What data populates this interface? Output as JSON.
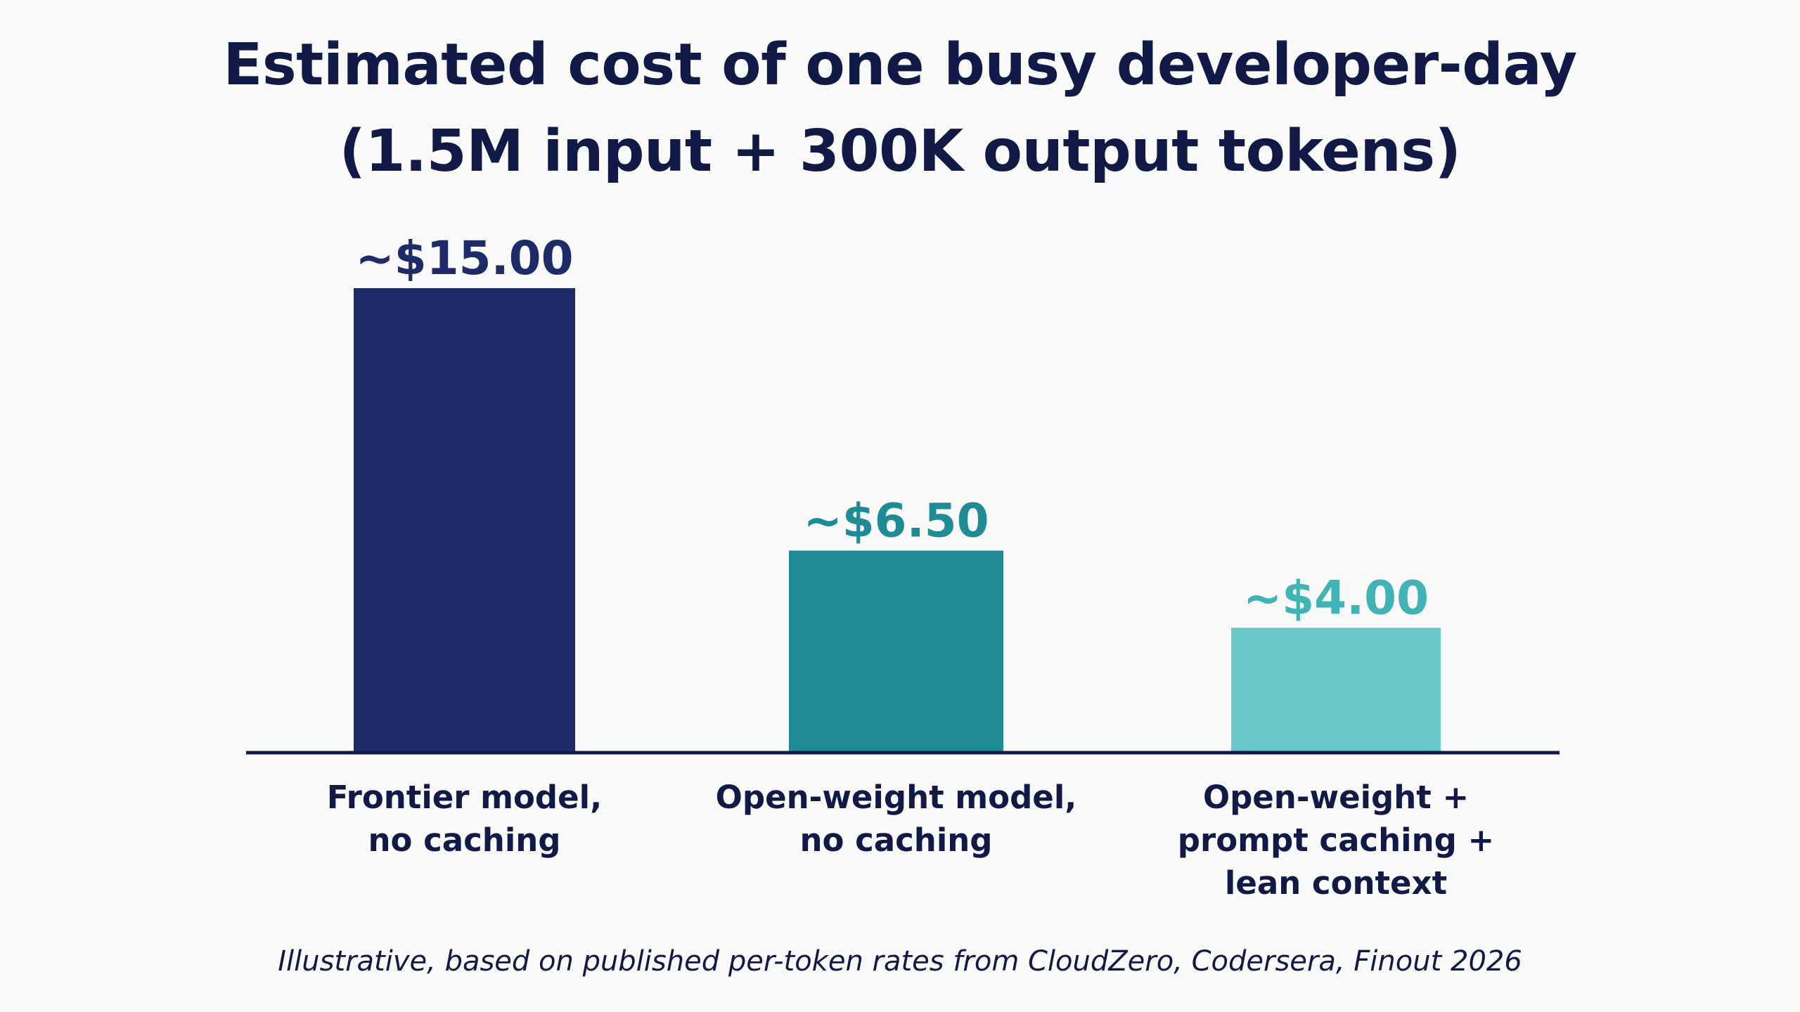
{
  "colors": {
    "background": "#fafafa",
    "axis": "#111a46",
    "bar_frontier": "#1d2b69",
    "bar_openweight": "#1f8b94",
    "bar_lean": "#67c7c9",
    "label_frontier": "#1d2b69",
    "label_openweight": "#1f8b94",
    "label_lean": "#3fb3b6",
    "category_text": "#111a46"
  },
  "chart_data": {
    "type": "bar",
    "title_lines": [
      "Estimated cost of one busy developer-day",
      "(1.5M input + 300K output tokens)"
    ],
    "xlabel": "",
    "ylabel": "",
    "ylim": [
      0,
      15
    ],
    "grid": false,
    "categories": [
      [
        "Frontier model,",
        "no caching"
      ],
      [
        "Open-weight model,",
        "no caching"
      ],
      [
        "Open-weight +",
        "prompt caching +",
        "lean context"
      ]
    ],
    "values": [
      15.0,
      6.5,
      4.0
    ],
    "data_labels": [
      "~$15.00",
      "~$6.50",
      "~$4.00"
    ],
    "footnote": "Illustrative, based on published per-token rates from CloudZero, Codersera, Finout 2026"
  }
}
